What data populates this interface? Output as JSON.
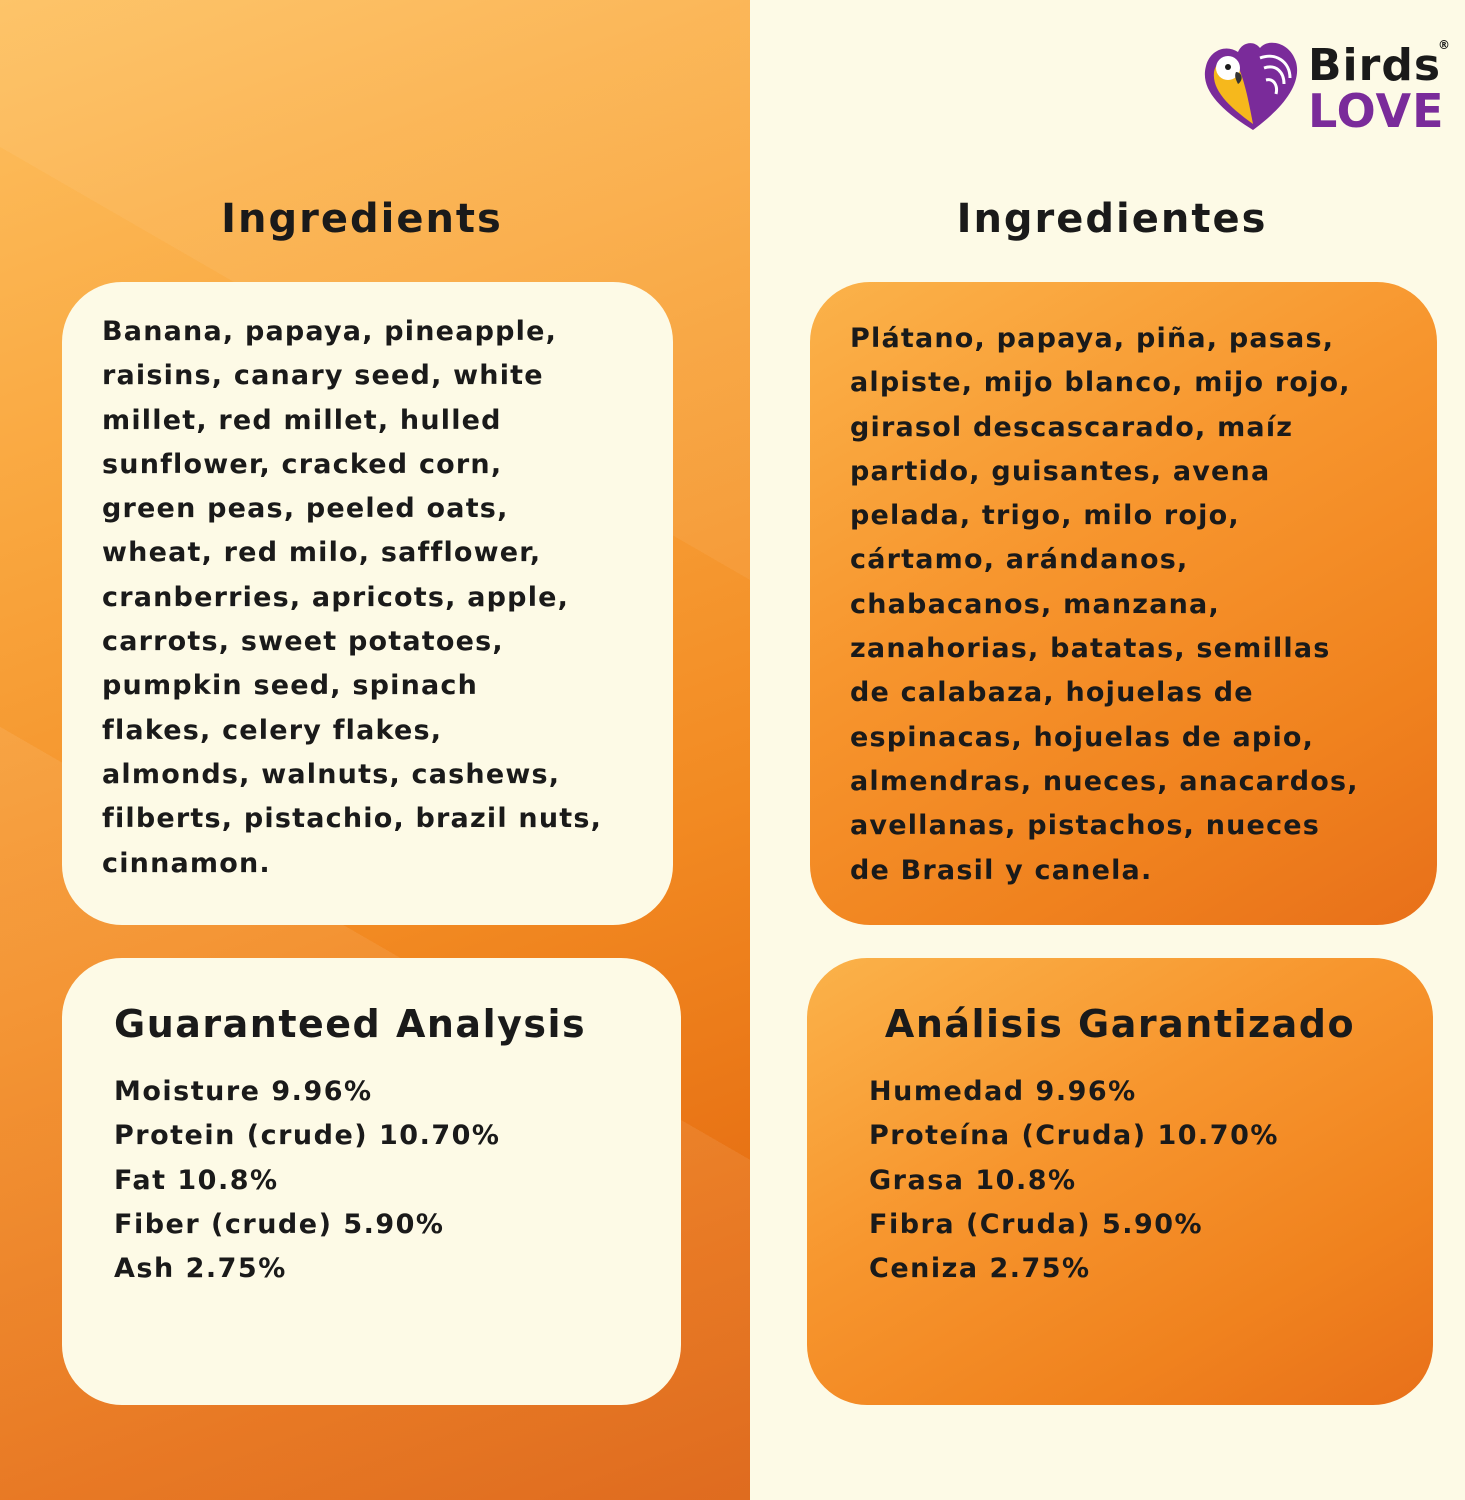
{
  "brand": {
    "logo_top": "Birds",
    "logo_bottom": "LOVE",
    "registered": "®",
    "colors": {
      "purple": "#7a2b9a",
      "yellow": "#f6b81c",
      "dark": "#1a1a1a"
    }
  },
  "english": {
    "ingredients_title": "Ingredients",
    "ingredients_lines": [
      "Banana, papaya, pineapple,",
      "raisins, canary seed, white",
      "millet, red millet, hulled",
      "sunflower, cracked corn,",
      "green peas, peeled oats,",
      "wheat, red milo, safflower,",
      "cranberries, apricots, apple,",
      "carrots, sweet potatoes,",
      "pumpkin seed, spinach",
      "flakes, celery flakes,",
      "almonds, walnuts, cashews,",
      "filberts, pistachio, brazil nuts,",
      "cinnamon."
    ],
    "analysis_title": "Guaranteed Analysis",
    "analysis_lines": [
      "Moisture  9.96%",
      "Protein (crude) 10.70%",
      "Fat 10.8%",
      "Fiber (crude)  5.90%",
      "Ash 2.75%"
    ]
  },
  "spanish": {
    "ingredients_title": "Ingredientes",
    "ingredients_lines": [
      "Plátano, papaya, piña, pasas,",
      "alpiste, mijo blanco, mijo rojo,",
      "girasol descascarado, maíz",
      "partido, guisantes, avena",
      "pelada, trigo, milo rojo,",
      "cártamo, arándanos,",
      "chabacanos, manzana,",
      "zanahorias, batatas, semillas",
      "de calabaza, hojuelas de",
      "espinacas, hojuelas de apio,",
      "almendras, nueces, anacardos,",
      "avellanas, pistachos, nueces",
      "de Brasil y canela."
    ],
    "analysis_title": "Análisis Garantizado",
    "analysis_lines": [
      "Humedad  9.96%",
      "Proteína (Cruda) 10.70%",
      "Grasa 10.8%",
      "Fibra (Cruda) 5.90%",
      "Ceniza  2.75%"
    ]
  }
}
